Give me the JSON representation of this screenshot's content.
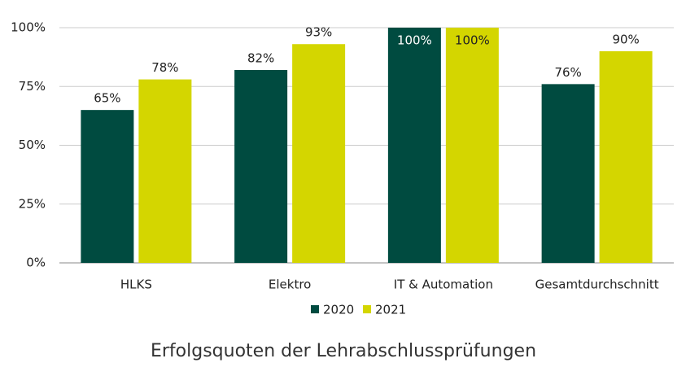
{
  "chart_data": {
    "type": "bar",
    "title": "Erfolgsquoten der Lehrabschlussprüfungen",
    "categories": [
      "HLKS",
      "Elektro",
      "IT & Automation",
      "Gesamtdurchschnitt"
    ],
    "series": [
      {
        "name": "2020",
        "color": "#004b40",
        "values": [
          65,
          82,
          100,
          76
        ],
        "value_labels": [
          "65%",
          "82%",
          "100%",
          "76%"
        ]
      },
      {
        "name": "2021",
        "color": "#d4d600",
        "values": [
          78,
          93,
          100,
          90
        ],
        "value_labels": [
          "78%",
          "93%",
          "100%",
          "90%"
        ]
      }
    ],
    "ylim": [
      0,
      100
    ],
    "yticks": [
      {
        "value": 0,
        "label": "0%"
      },
      {
        "value": 25,
        "label": "25%"
      },
      {
        "value": 50,
        "label": "50%"
      },
      {
        "value": 75,
        "label": "75%"
      },
      {
        "value": 100,
        "label": "100%"
      }
    ],
    "grid": true,
    "legend": "bottom"
  }
}
